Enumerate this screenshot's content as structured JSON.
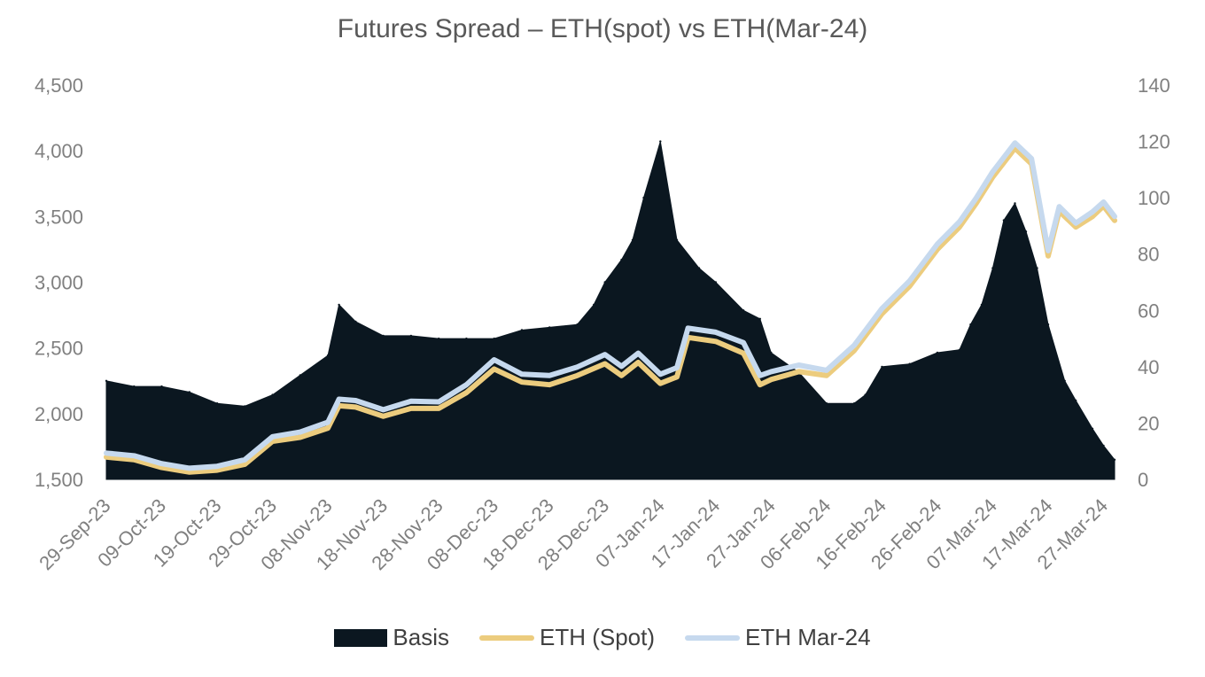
{
  "chart_data": {
    "type": "area+line",
    "title": "Futures Spread – ETH(spot) vs ETH(Mar-24)",
    "left_axis": {
      "min": 1500,
      "max": 4500,
      "ticks": [
        "1,500",
        "2,000",
        "2,500",
        "3,000",
        "3,500",
        "4,000",
        "4,500"
      ],
      "tick_values": [
        1500,
        2000,
        2500,
        3000,
        3500,
        4000,
        4500
      ]
    },
    "right_axis": {
      "min": 0,
      "max": 140,
      "ticks": [
        "0",
        "20",
        "40",
        "60",
        "80",
        "100",
        "120",
        "140"
      ],
      "tick_values": [
        0,
        20,
        40,
        60,
        80,
        100,
        120,
        140
      ]
    },
    "x_tick_labels": [
      "29-Sep-23",
      "09-Oct-23",
      "19-Oct-23",
      "29-Oct-23",
      "08-Nov-23",
      "18-Nov-23",
      "28-Nov-23",
      "08-Dec-23",
      "18-Dec-23",
      "28-Dec-23",
      "07-Jan-24",
      "17-Jan-24",
      "27-Jan-24",
      "06-Feb-24",
      "16-Feb-24",
      "26-Feb-24",
      "07-Mar-24",
      "17-Mar-24",
      "27-Mar-24"
    ],
    "grid": false,
    "legend_position": "bottom",
    "series": [
      {
        "name": "Basis",
        "type": "area",
        "axis": "right",
        "color": "#0b1720",
        "x": [
          "29-Sep-23",
          "04-Oct-23",
          "09-Oct-23",
          "14-Oct-23",
          "19-Oct-23",
          "24-Oct-23",
          "29-Oct-23",
          "03-Nov-23",
          "08-Nov-23",
          "10-Nov-23",
          "13-Nov-23",
          "18-Nov-23",
          "23-Nov-23",
          "28-Nov-23",
          "03-Dec-23",
          "08-Dec-23",
          "13-Dec-23",
          "18-Dec-23",
          "23-Dec-23",
          "26-Dec-23",
          "28-Dec-23",
          "31-Dec-23",
          "02-Jan-24",
          "04-Jan-24",
          "07-Jan-24",
          "10-Jan-24",
          "14-Jan-24",
          "17-Jan-24",
          "22-Jan-24",
          "25-Jan-24",
          "27-Jan-24",
          "01-Feb-24",
          "06-Feb-24",
          "11-Feb-24",
          "13-Feb-24",
          "16-Feb-24",
          "21-Feb-24",
          "26-Feb-24",
          "01-Mar-24",
          "03-Mar-24",
          "05-Mar-24",
          "07-Mar-24",
          "09-Mar-24",
          "11-Mar-24",
          "13-Mar-24",
          "15-Mar-24",
          "17-Mar-24",
          "20-Mar-24",
          "22-Mar-24",
          "25-Mar-24",
          "27-Mar-24",
          "29-Mar-24"
        ],
        "values": [
          35,
          33,
          33,
          31,
          27,
          26,
          30,
          37,
          44,
          62,
          56,
          51,
          51,
          50,
          50,
          50,
          53,
          54,
          55,
          62,
          70,
          78,
          85,
          100,
          120,
          85,
          75,
          70,
          60,
          57,
          45,
          38,
          27,
          27,
          30,
          40,
          41,
          45,
          46,
          55,
          62,
          75,
          92,
          98,
          88,
          75,
          55,
          35,
          28,
          18,
          12,
          7
        ]
      },
      {
        "name": "ETH (Spot)",
        "type": "line",
        "axis": "left",
        "color": "#eccc7e",
        "x": [
          "29-Sep-23",
          "04-Oct-23",
          "09-Oct-23",
          "14-Oct-23",
          "19-Oct-23",
          "24-Oct-23",
          "29-Oct-23",
          "03-Nov-23",
          "08-Nov-23",
          "10-Nov-23",
          "13-Nov-23",
          "18-Nov-23",
          "23-Nov-23",
          "28-Nov-23",
          "03-Dec-23",
          "08-Dec-23",
          "13-Dec-23",
          "18-Dec-23",
          "23-Dec-23",
          "28-Dec-23",
          "31-Dec-23",
          "03-Jan-24",
          "07-Jan-24",
          "10-Jan-24",
          "12-Jan-24",
          "17-Jan-24",
          "22-Jan-24",
          "25-Jan-24",
          "27-Jan-24",
          "01-Feb-24",
          "06-Feb-24",
          "11-Feb-24",
          "16-Feb-24",
          "21-Feb-24",
          "26-Feb-24",
          "01-Mar-24",
          "04-Mar-24",
          "07-Mar-24",
          "11-Mar-24",
          "14-Mar-24",
          "17-Mar-24",
          "19-Mar-24",
          "22-Mar-24",
          "25-Mar-24",
          "27-Mar-24",
          "29-Mar-24"
        ],
        "values": [
          1670,
          1650,
          1590,
          1555,
          1570,
          1615,
          1790,
          1820,
          1890,
          2060,
          2050,
          1980,
          2040,
          2040,
          2160,
          2340,
          2240,
          2220,
          2290,
          2380,
          2290,
          2390,
          2230,
          2280,
          2580,
          2550,
          2460,
          2220,
          2260,
          2320,
          2290,
          2480,
          2760,
          2970,
          3250,
          3420,
          3600,
          3800,
          4020,
          3900,
          3200,
          3540,
          3420,
          3500,
          3580,
          3470
        ]
      },
      {
        "name": "ETH Mar-24",
        "type": "line",
        "axis": "left",
        "color": "#c6d9ee",
        "x": [
          "29-Sep-23",
          "04-Oct-23",
          "09-Oct-23",
          "14-Oct-23",
          "19-Oct-23",
          "24-Oct-23",
          "29-Oct-23",
          "03-Nov-23",
          "08-Nov-23",
          "10-Nov-23",
          "13-Nov-23",
          "18-Nov-23",
          "23-Nov-23",
          "28-Nov-23",
          "03-Dec-23",
          "08-Dec-23",
          "13-Dec-23",
          "18-Dec-23",
          "23-Dec-23",
          "28-Dec-23",
          "31-Dec-23",
          "03-Jan-24",
          "07-Jan-24",
          "10-Jan-24",
          "12-Jan-24",
          "17-Jan-24",
          "22-Jan-24",
          "25-Jan-24",
          "27-Jan-24",
          "01-Feb-24",
          "06-Feb-24",
          "11-Feb-24",
          "16-Feb-24",
          "21-Feb-24",
          "26-Feb-24",
          "01-Mar-24",
          "04-Mar-24",
          "07-Mar-24",
          "11-Mar-24",
          "14-Mar-24",
          "17-Mar-24",
          "19-Mar-24",
          "22-Mar-24",
          "25-Mar-24",
          "27-Mar-24",
          "29-Mar-24"
        ],
        "values": [
          1700,
          1680,
          1620,
          1585,
          1600,
          1650,
          1825,
          1860,
          1935,
          2110,
          2100,
          2030,
          2095,
          2090,
          2220,
          2410,
          2300,
          2290,
          2355,
          2450,
          2360,
          2460,
          2300,
          2350,
          2650,
          2620,
          2540,
          2290,
          2320,
          2370,
          2330,
          2520,
          2800,
          3010,
          3290,
          3460,
          3640,
          3840,
          4060,
          3940,
          3240,
          3575,
          3450,
          3535,
          3610,
          3500
        ]
      }
    ]
  },
  "legend": {
    "basis_label": "Basis",
    "spot_label": "ETH (Spot)",
    "mar24_label": "ETH Mar-24"
  }
}
